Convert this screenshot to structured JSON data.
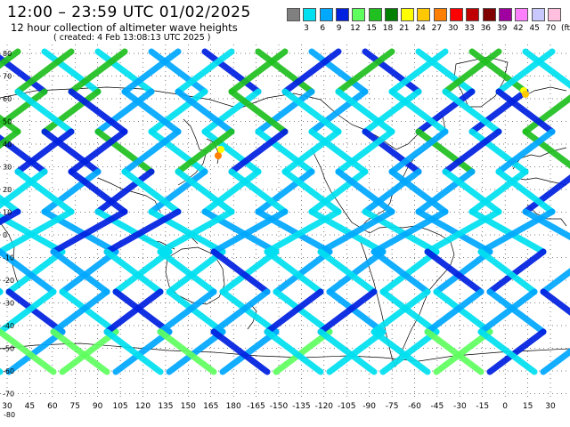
{
  "header": {
    "title": "12:00 – 23:59 UTC 01/02/2025",
    "subtitle": "12 hour collection of altimeter wave heights",
    "created": "( created:  4 Feb 13:08:13 UTC 2025 )"
  },
  "legend": {
    "colors": [
      "#808080",
      "#00e0f0",
      "#00a8ff",
      "#0020e0",
      "#60ff60",
      "#20c020",
      "#008000",
      "#ffff00",
      "#ffc800",
      "#ff8000",
      "#ff0000",
      "#c00000",
      "#800000",
      "#a000a0",
      "#ff80ff",
      "#c8c8ff",
      "#ffc0e0"
    ],
    "labels": [
      "3",
      "6",
      "9",
      "12",
      "15",
      "18",
      "21",
      "24",
      "27",
      "30",
      "33",
      "36",
      "39",
      "42",
      "45",
      "70",
      "(ft)"
    ]
  },
  "map": {
    "lat_labels": [
      "80",
      "70",
      "60",
      "50",
      "40",
      "30",
      "20",
      "10",
      "0",
      "-10",
      "-20",
      "-30",
      "-40",
      "-50",
      "-60",
      "-70"
    ],
    "lon_labels": [
      "30",
      "45",
      "60",
      "75",
      "90",
      "105",
      "120",
      "135",
      "150",
      "165",
      "180",
      "-165",
      "-150",
      "-135",
      "-120",
      "-105",
      "-90",
      "-75",
      "-60",
      "-45",
      "-30",
      "-15",
      "0",
      "15",
      "30"
    ],
    "corner_lat": "-80",
    "background_color": "#ffffff",
    "coastline_color": "#000000",
    "grid_style": "dotted"
  }
}
